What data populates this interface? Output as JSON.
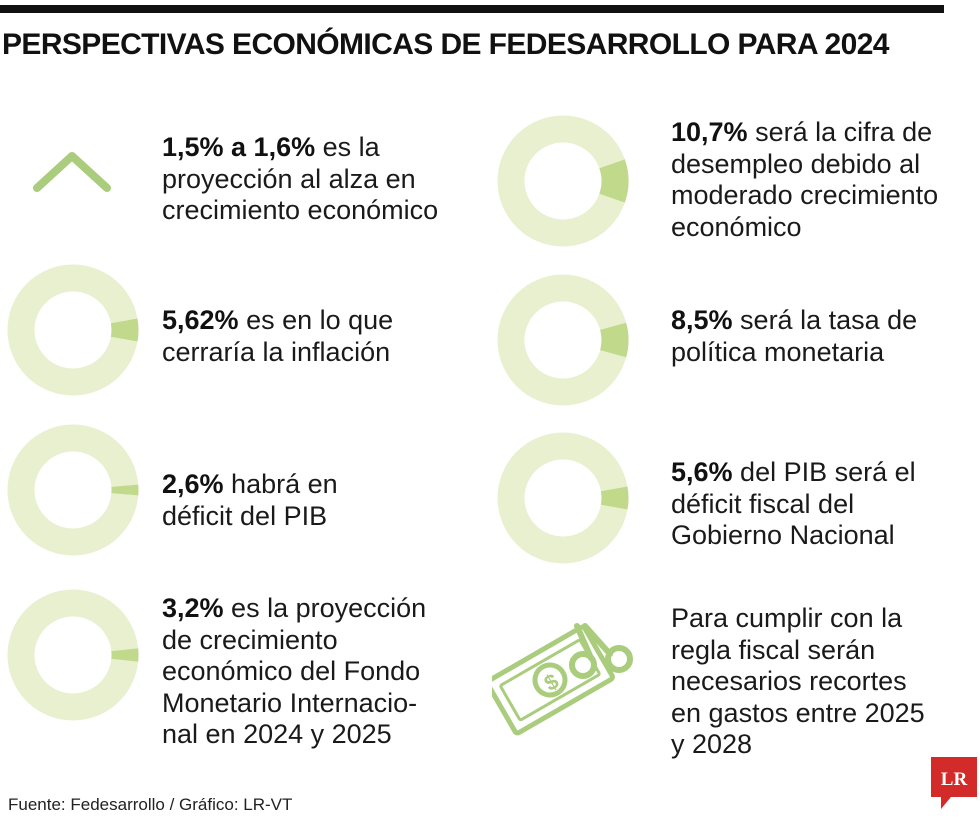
{
  "title": "PERSPECTIVAS ECONÓMICAS DE FEDESARROLLO PARA 2024",
  "colors": {
    "ring_light": "#e9f0cf",
    "ring_highlight": "#c1d98a",
    "accent": "#a9cc7d",
    "logo_red": "#d32a2a"
  },
  "items": [
    {
      "bold": "1,5% a 1,6%",
      "rest_lines": [
        " es la",
        "proyección al alza en",
        "crecimiento económico"
      ],
      "icon": "chevron-up-icon"
    },
    {
      "bold": "10,7%",
      "rest_lines": [
        " será la cifra de",
        "desempleo debido al",
        "moderado crecimiento",
        "económico"
      ],
      "icon": "donut-chart-icon",
      "highlight_value": 0.107
    },
    {
      "bold": "5,62%",
      "rest_lines": [
        " es en lo que",
        "cerraría la inflación"
      ],
      "icon": "donut-chart-icon",
      "highlight_value": 0.0562
    },
    {
      "bold": "8,5%",
      "rest_lines": [
        " será la tasa de",
        "política monetaria"
      ],
      "icon": "donut-chart-icon",
      "highlight_value": 0.085
    },
    {
      "bold": "2,6%",
      "rest_lines": [
        " habrá en",
        "déficit del PIB"
      ],
      "icon": "donut-chart-icon",
      "highlight_value": 0.026
    },
    {
      "bold": "5,6%",
      "rest_lines": [
        " del PIB será el",
        "déficit fiscal del",
        "Gobierno Nacional"
      ],
      "icon": "donut-chart-icon",
      "highlight_value": 0.056
    },
    {
      "bold": "3,2%",
      "rest_lines": [
        " es la proyección",
        "de crecimiento",
        "económico del Fondo",
        "Monetario Internacio-",
        "nal en 2024 y 2025"
      ],
      "icon": "donut-chart-icon",
      "highlight_value": 0.032
    },
    {
      "bold": "",
      "rest_lines": [
        "Para cumplir con la",
        "regla fiscal serán",
        "necesarios recortes",
        "en gastos entre 2025",
        "y 2028"
      ],
      "icon": "money-scissors-icon"
    }
  ],
  "source": "Fuente: Fedesarrollo  / Gráfico: LR-VT",
  "logo": {
    "text": "LR"
  }
}
